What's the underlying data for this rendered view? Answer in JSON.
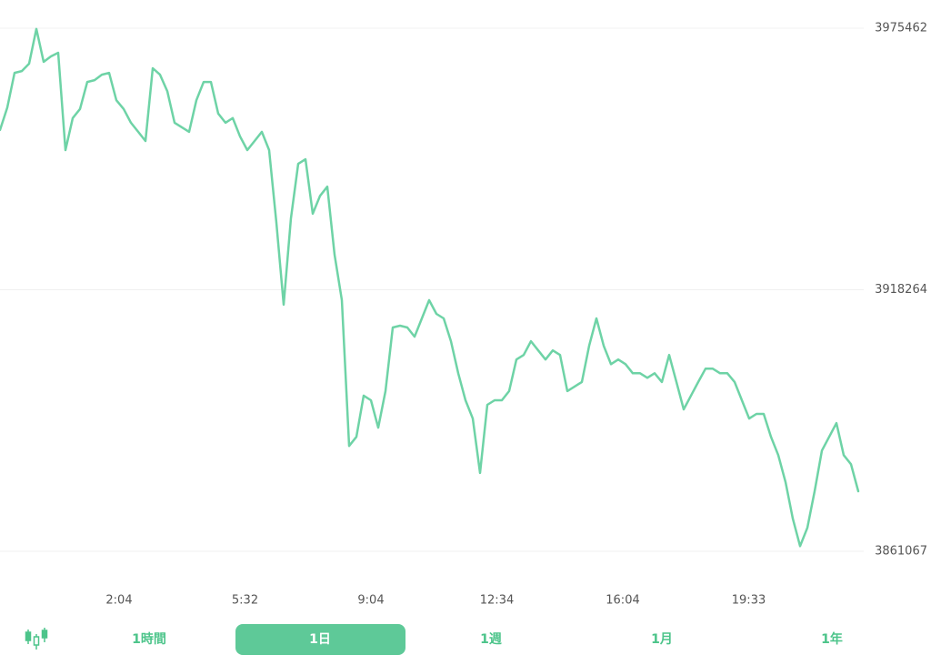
{
  "chart_data": {
    "type": "line",
    "color": "#6ed3a6",
    "values": [
      3953200,
      3958100,
      3965700,
      3966100,
      3967700,
      3975300,
      3968100,
      3969300,
      3970100,
      3948800,
      3955800,
      3957800,
      3963700,
      3964100,
      3965300,
      3965700,
      3959700,
      3957800,
      3954800,
      3952800,
      3950800,
      3966700,
      3965300,
      3961700,
      3954800,
      3953800,
      3952800,
      3959700,
      3963700,
      3963700,
      3956800,
      3954800,
      3955800,
      3951800,
      3948800,
      3950800,
      3952800,
      3948800,
      3932900,
      3915000,
      3933900,
      3945800,
      3946800,
      3934900,
      3938800,
      3940800,
      3925900,
      3916000,
      3884100,
      3886100,
      3895100,
      3894100,
      3888100,
      3896100,
      3910000,
      3910400,
      3910000,
      3908000,
      3912000,
      3916000,
      3913000,
      3912000,
      3907000,
      3900000,
      3894100,
      3890100,
      3878200,
      3893100,
      3894100,
      3894100,
      3896100,
      3903000,
      3904000,
      3907000,
      3905000,
      3903000,
      3905000,
      3904000,
      3896100,
      3897100,
      3898100,
      3906000,
      3912000,
      3906000,
      3902000,
      3903000,
      3902000,
      3900000,
      3900000,
      3899000,
      3900000,
      3898100,
      3904000,
      3898100,
      3892100,
      3895100,
      3898100,
      3901000,
      3901000,
      3900000,
      3900000,
      3898100,
      3894100,
      3890100,
      3891100,
      3891100,
      3886100,
      3882100,
      3876200,
      3868200,
      3862200,
      3866200,
      3874200,
      3883100,
      3886100,
      3889100,
      3882100,
      3880100,
      3874200
    ],
    "ylim": [
      3861067,
      3975462
    ],
    "yticks": [
      3861067,
      3918264,
      3975462
    ],
    "grid": true,
    "xticks": [
      "2:04",
      "5:32",
      "9:04",
      "12:34",
      "16:04",
      "19:33"
    ]
  },
  "range_buttons": [
    "1時間",
    "1日",
    "1週",
    "1月",
    "1年"
  ]
}
